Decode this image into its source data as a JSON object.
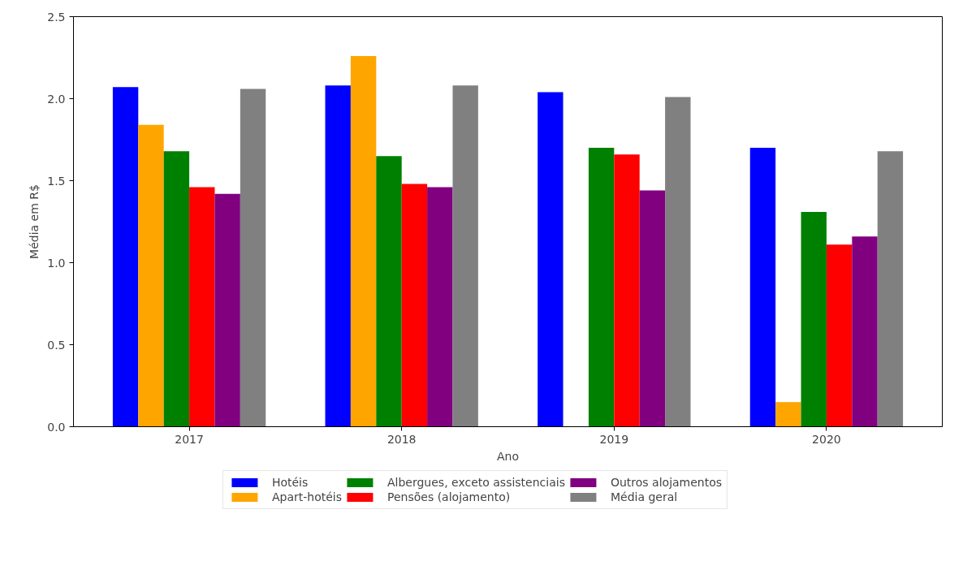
{
  "chart_data": {
    "type": "bar",
    "xlabel": "Ano",
    "ylabel": "Média em R$",
    "categories": [
      "2017",
      "2018",
      "2019",
      "2020"
    ],
    "series": [
      {
        "name": "Hotéis",
        "color": "#0000ff",
        "values": [
          2.07,
          2.08,
          2.04,
          1.7
        ]
      },
      {
        "name": "Apart-hotéis",
        "color": "#ffa500",
        "values": [
          1.84,
          2.26,
          null,
          0.15
        ]
      },
      {
        "name": "Albergues, exceto assistenciais",
        "color": "#008000",
        "values": [
          1.68,
          1.65,
          1.7,
          1.31
        ]
      },
      {
        "name": "Pensões (alojamento)",
        "color": "#ff0000",
        "values": [
          1.46,
          1.48,
          1.66,
          1.11
        ]
      },
      {
        "name": "Outros alojamentos",
        "color": "#800080",
        "values": [
          1.42,
          1.46,
          1.44,
          1.16
        ]
      },
      {
        "name": "Média geral",
        "color": "#808080",
        "values": [
          2.06,
          2.08,
          2.01,
          1.68
        ]
      }
    ],
    "ylim": [
      0,
      2.5
    ],
    "yticks": [
      {
        "value": 0,
        "label": "0.0"
      },
      0.5,
      {
        "value": 1,
        "label": "1.0"
      },
      1.5,
      {
        "value": 2,
        "label": "2.0"
      },
      2.5
    ],
    "grid": false,
    "legend": "bottom"
  }
}
